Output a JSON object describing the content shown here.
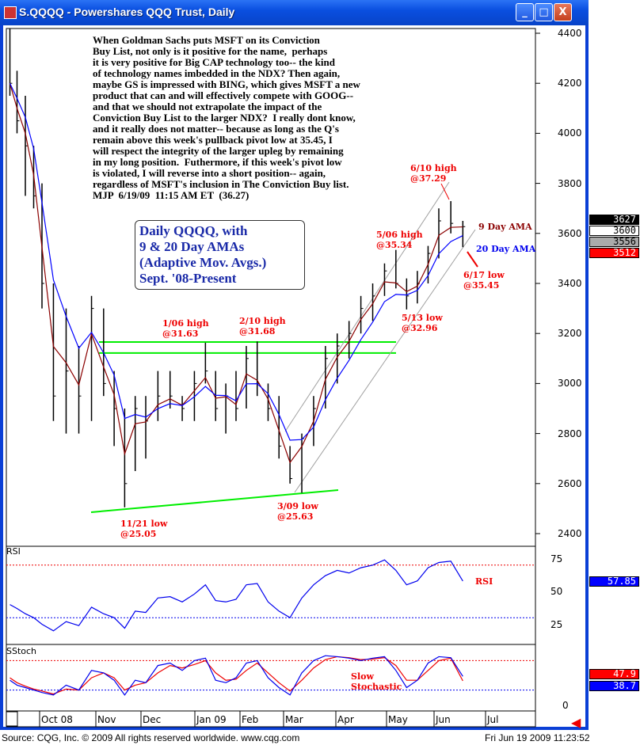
{
  "window": {
    "title": "S.QQQQ - Powershares QQQ Trust, Daily",
    "buttons": [
      "_",
      "□",
      "X"
    ]
  },
  "commentary": "When Goldman Sachs puts MSFT on its Conviction\nBuy List, not only is it positive for the name,  perhaps\nit is very positive for Big CAP technology too-- the kind\nof technology names imbedded in the NDX? Then again,\nmaybe GS is impressed with BING, which gives MSFT a new\nproduct that can and will effectively compete with GOOG--\nand that we should not extrapolate the impact of the\nConviction Buy List to the larger NDX?  I really dont know,\nand it really does not matter-- because as long as the Q's\nremain above this week's pullback pivot low at 35.45, I\nwill respect the integrity of the larger upleg by remaining\nin my long position.  Futhermore, if this week's pivot low\nis violated, I will reverse into a short position-- again,\nregardless of MSFT's inclusion in The Conviction Buy list.\nMJP  6/19/09  11:15 AM ET  (36.27)",
  "legend_box": "Daily QQQQ, with\n9 & 20 Day AMAs\n(Adaptive Mov. Avgs.)\nSept. '08-Present",
  "annotations": {
    "nov21": "11/21 low\n@25.05",
    "jan06": "1/06 high\n@31.63",
    "feb10": "2/10 high\n@31.68",
    "mar09": "3/09 low\n@25.63",
    "may06": "5/06 high\n@35.34",
    "may13": "5/13 low\n@32.96",
    "jun10": "6/10 high\n@37.29",
    "jun17": "6/17 low\n@35.45",
    "ama9": "9 Day AMA",
    "ama20": "20 Day AMA",
    "rsi": "RSI",
    "stoch": "Slow\nStochastic"
  },
  "panels": {
    "rsi": "RSI",
    "stoch": "SStoch"
  },
  "value_boxes": {
    "last": "3627",
    "ama9": "3600",
    "ama20": "3556",
    "low": "3512",
    "rsi": "57.85",
    "stoch_k": "47.9",
    "stoch_d": "38.7"
  },
  "colors": {
    "price": "#000000",
    "ama9": "#8b0000",
    "ama20": "#0000ff",
    "support": "#00ee00",
    "channel": "#a0a0a0",
    "annotation": "#ee0000"
  },
  "footer": {
    "source": "Source: CQG, Inc. © 2009 All rights reserved worldwide. www.cqg.com",
    "timestamp": "Fri Jun 19 2009 11:23:52"
  },
  "chart_data": {
    "type": "ohlc",
    "price_ticks": [
      2400,
      2600,
      2800,
      3000,
      3200,
      3400,
      3600,
      3800,
      4000,
      4200,
      4400
    ],
    "ylim": [
      2400,
      4400
    ],
    "rsi_ticks": [
      25,
      50,
      75
    ],
    "stoch_ticks": [
      0
    ],
    "x_ticks": [
      "Oct 08",
      "Nov",
      "Dec",
      "Jan 09",
      "Feb",
      "Mar",
      "Apr",
      "May",
      "Jun",
      "Jul"
    ],
    "bars": [
      [
        "2008-09-02",
        4420,
        4150,
        4200
      ],
      [
        "2008-09-08",
        4250,
        4000,
        4050
      ],
      [
        "2008-09-15",
        4150,
        3750,
        3950
      ],
      [
        "2008-09-22",
        3950,
        3700,
        3750
      ],
      [
        "2008-09-29",
        3800,
        3300,
        3400
      ],
      [
        "2008-10-06",
        3400,
        2850,
        2950
      ],
      [
        "2008-10-13",
        3300,
        2800,
        3050
      ],
      [
        "2008-10-20",
        3150,
        2800,
        2950
      ],
      [
        "2008-10-27",
        3350,
        2850,
        3300
      ],
      [
        "2008-11-03",
        3300,
        2950,
        3000
      ],
      [
        "2008-11-10",
        3050,
        2750,
        2900
      ],
      [
        "2008-11-17",
        2900,
        2505,
        2600
      ],
      [
        "2008-11-24",
        2950,
        2650,
        2900
      ],
      [
        "2008-12-01",
        2950,
        2700,
        2850
      ],
      [
        "2008-12-08",
        3050,
        2850,
        2950
      ],
      [
        "2008-12-15",
        3050,
        2900,
        2950
      ],
      [
        "2008-12-22",
        2950,
        2850,
        2900
      ],
      [
        "2008-12-29",
        3050,
        2850,
        3000
      ],
      [
        "2009-01-05",
        3163,
        3000,
        3050
      ],
      [
        "2009-01-12",
        3050,
        2850,
        2900
      ],
      [
        "2009-01-19",
        3000,
        2800,
        2950
      ],
      [
        "2009-01-26",
        3050,
        2850,
        2900
      ],
      [
        "2009-02-02",
        3150,
        2900,
        3100
      ],
      [
        "2009-02-09",
        3168,
        2950,
        3000
      ],
      [
        "2009-02-16",
        3000,
        2850,
        2900
      ],
      [
        "2009-02-23",
        2950,
        2700,
        2750
      ],
      [
        "2009-03-02",
        2750,
        2600,
        2620
      ],
      [
        "2009-03-09",
        2800,
        2563,
        2780
      ],
      [
        "2009-03-16",
        2950,
        2750,
        2900
      ],
      [
        "2009-03-23",
        3150,
        2900,
        3100
      ],
      [
        "2009-03-30",
        3200,
        3000,
        3150
      ],
      [
        "2009-04-06",
        3250,
        3100,
        3200
      ],
      [
        "2009-04-13",
        3350,
        3200,
        3300
      ],
      [
        "2009-04-20",
        3400,
        3250,
        3350
      ],
      [
        "2009-04-27",
        3480,
        3350,
        3450
      ],
      [
        "2009-05-04",
        3534,
        3380,
        3400
      ],
      [
        "2009-05-11",
        3420,
        3296,
        3350
      ],
      [
        "2009-05-18",
        3450,
        3320,
        3400
      ],
      [
        "2009-05-25",
        3550,
        3400,
        3520
      ],
      [
        "2009-06-01",
        3700,
        3500,
        3650
      ],
      [
        "2009-06-08",
        3729,
        3600,
        3640
      ],
      [
        "2009-06-15",
        3650,
        3545,
        3627
      ]
    ],
    "rsi": [
      40,
      37,
      33,
      30,
      25,
      20,
      27,
      24,
      38,
      33,
      30,
      22,
      35,
      34,
      45,
      46,
      42,
      48,
      55,
      43,
      42,
      44,
      55,
      56,
      42,
      35,
      30,
      45,
      55,
      62,
      66,
      64,
      68,
      70,
      74,
      66,
      55,
      58,
      68,
      72,
      73,
      57.85
    ],
    "stoch_k": [
      40,
      30,
      25,
      20,
      15,
      10,
      30,
      20,
      60,
      55,
      40,
      10,
      40,
      35,
      70,
      75,
      60,
      80,
      85,
      40,
      35,
      45,
      75,
      80,
      45,
      25,
      10,
      55,
      80,
      90,
      88,
      85,
      80,
      85,
      88,
      60,
      25,
      40,
      75,
      88,
      86,
      47.9
    ],
    "stoch_d": [
      45,
      35,
      28,
      22,
      18,
      12,
      22,
      20,
      45,
      55,
      45,
      20,
      30,
      35,
      55,
      70,
      65,
      72,
      80,
      55,
      40,
      42,
      60,
      75,
      55,
      35,
      18,
      40,
      65,
      82,
      88,
      86,
      82,
      83,
      86,
      70,
      40,
      40,
      60,
      80,
      85,
      38.7
    ]
  }
}
